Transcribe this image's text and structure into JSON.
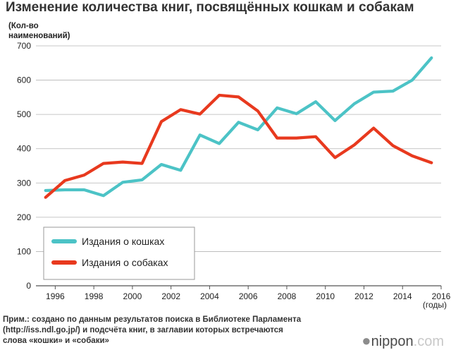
{
  "chart_data": {
    "type": "line",
    "title": "Изменение количества книг, посвящённых кошкам и собакам",
    "ylabel": [
      "(Кол-во",
      "наименований)"
    ],
    "xlabel": "(годы)",
    "ylim": [
      0,
      700
    ],
    "yticks": [
      0,
      100,
      200,
      300,
      400,
      500,
      600,
      700
    ],
    "xlim": [
      1995,
      2016
    ],
    "xticks": [
      1996,
      1998,
      2000,
      2002,
      2004,
      2006,
      2008,
      2010,
      2012,
      2014,
      2016
    ],
    "x": [
      1995.5,
      1996.5,
      1997.5,
      1998.5,
      1999.5,
      2000.5,
      2001.5,
      2002.5,
      2003.5,
      2004.5,
      2005.5,
      2006.5,
      2007.5,
      2008.5,
      2009.5,
      2010.5,
      2011.5,
      2012.5,
      2013.5,
      2014.5,
      2015.5
    ],
    "series": [
      {
        "name": "Издания о кошках",
        "color": "#4cc3c6",
        "values": [
          278,
          280,
          280,
          263,
          302,
          309,
          354,
          337,
          440,
          415,
          477,
          455,
          519,
          502,
          537,
          482,
          531,
          565,
          568,
          600,
          665
        ]
      },
      {
        "name": "Издания о собаках",
        "color": "#e8391e",
        "values": [
          258,
          307,
          323,
          357,
          361,
          357,
          479,
          514,
          501,
          556,
          551,
          510,
          431,
          431,
          435,
          374,
          411,
          460,
          409,
          379,
          359
        ]
      }
    ],
    "legend_position": "bottom-left"
  },
  "footnote": [
    "Прим.: создано по данным результатов поиска в Библиотеке Парламента",
    "(http://iss.ndl.go.jp/) и подсчёта книг, в заглавии которых встречаются",
    "слова «кошки» и «собаки»"
  ],
  "logo": {
    "dot": "●",
    "brand": "nippon",
    "suffix": ".com"
  }
}
